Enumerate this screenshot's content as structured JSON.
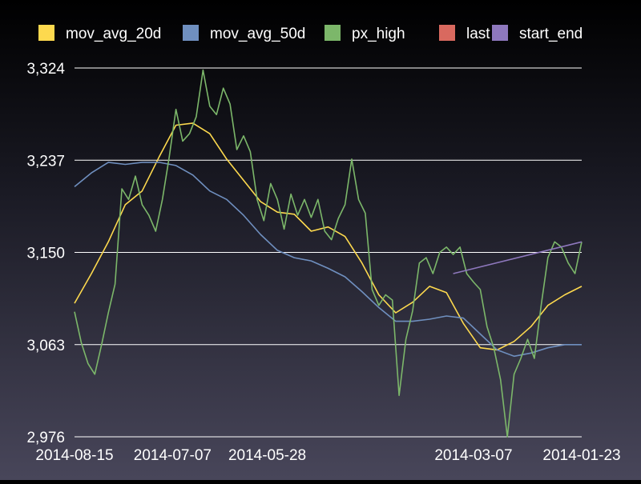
{
  "chart_data": {
    "type": "line",
    "title": "",
    "xlabel": "",
    "ylabel": "",
    "ylim": [
      2976,
      3324
    ],
    "y_ticks": [
      "3,324",
      "3,237",
      "3,150",
      "3,063",
      "2,976"
    ],
    "y_tick_values": [
      3324,
      3237,
      3150,
      3063,
      2976
    ],
    "x_tick_labels": [
      "2014-08-15",
      "2014-07-07",
      "2014-05-28",
      "2014-03-07",
      "2014-01-23"
    ],
    "x_tick_index": [
      0,
      29,
      57,
      118,
      150
    ],
    "n_points": 151,
    "grid": true,
    "legend_position": "top",
    "colors": {
      "mov_avg_20d": "#fdd94e",
      "mov_avg_50d": "#6f8fbf",
      "px_high": "#7cb76a",
      "last": "#d9695f",
      "start_end": "#8e78bd",
      "grid": "#ffffff",
      "text": "#ffffff"
    },
    "series": [
      {
        "name": "mov_avg_20d",
        "x": [
          0,
          5,
          10,
          15,
          20,
          25,
          30,
          35,
          40,
          45,
          50,
          55,
          60,
          65,
          70,
          75,
          80,
          85,
          90,
          95,
          100,
          105,
          110,
          115,
          120,
          125,
          130,
          135,
          140,
          145,
          150
        ],
        "y": [
          3102,
          3130,
          3160,
          3195,
          3208,
          3240,
          3270,
          3272,
          3262,
          3238,
          3218,
          3198,
          3188,
          3186,
          3170,
          3174,
          3165,
          3140,
          3110,
          3093,
          3103,
          3118,
          3112,
          3083,
          3060,
          3058,
          3066,
          3080,
          3100,
          3110,
          3118
        ]
      },
      {
        "name": "mov_avg_50d",
        "x": [
          0,
          5,
          10,
          15,
          20,
          25,
          30,
          35,
          40,
          45,
          50,
          55,
          60,
          65,
          70,
          75,
          80,
          85,
          90,
          95,
          100,
          105,
          110,
          115,
          120,
          125,
          130,
          135,
          140,
          145,
          150
        ],
        "y": [
          3212,
          3225,
          3235,
          3233,
          3235,
          3235,
          3232,
          3223,
          3208,
          3200,
          3185,
          3167,
          3152,
          3145,
          3142,
          3135,
          3127,
          3113,
          3098,
          3085,
          3085,
          3087,
          3090,
          3088,
          3073,
          3058,
          3052,
          3055,
          3060,
          3063,
          3063
        ]
      },
      {
        "name": "px_high",
        "x": [
          0,
          2,
          4,
          6,
          8,
          10,
          12,
          14,
          16,
          18,
          20,
          22,
          24,
          26,
          28,
          30,
          32,
          34,
          36,
          38,
          40,
          42,
          44,
          46,
          48,
          50,
          52,
          54,
          56,
          58,
          60,
          62,
          64,
          66,
          68,
          70,
          72,
          74,
          76,
          78,
          80,
          82,
          84,
          86,
          88,
          90,
          92,
          94,
          96,
          98,
          100,
          102,
          104,
          106,
          108,
          110,
          112,
          114,
          116,
          118,
          120,
          122,
          124,
          126,
          128,
          130,
          132,
          134,
          136,
          138,
          140,
          142,
          144,
          146,
          148,
          150
        ],
        "y": [
          3094,
          3065,
          3045,
          3035,
          3063,
          3093,
          3120,
          3210,
          3200,
          3222,
          3195,
          3185,
          3170,
          3200,
          3240,
          3285,
          3255,
          3262,
          3278,
          3322,
          3288,
          3280,
          3305,
          3290,
          3247,
          3260,
          3245,
          3200,
          3180,
          3215,
          3200,
          3172,
          3205,
          3185,
          3200,
          3183,
          3200,
          3170,
          3162,
          3182,
          3195,
          3238,
          3200,
          3187,
          3115,
          3100,
          3110,
          3105,
          3015,
          3068,
          3095,
          3140,
          3145,
          3130,
          3150,
          3155,
          3148,
          3155,
          3130,
          3122,
          3115,
          3080,
          3060,
          3030,
          2976,
          3035,
          3050,
          3068,
          3050,
          3100,
          3145,
          3160,
          3155,
          3140,
          3130,
          3160
        ]
      },
      {
        "name": "last",
        "x": [],
        "y": []
      },
      {
        "name": "start_end",
        "x": [
          112,
          150
        ],
        "y": [
          3130,
          3160
        ]
      }
    ]
  }
}
